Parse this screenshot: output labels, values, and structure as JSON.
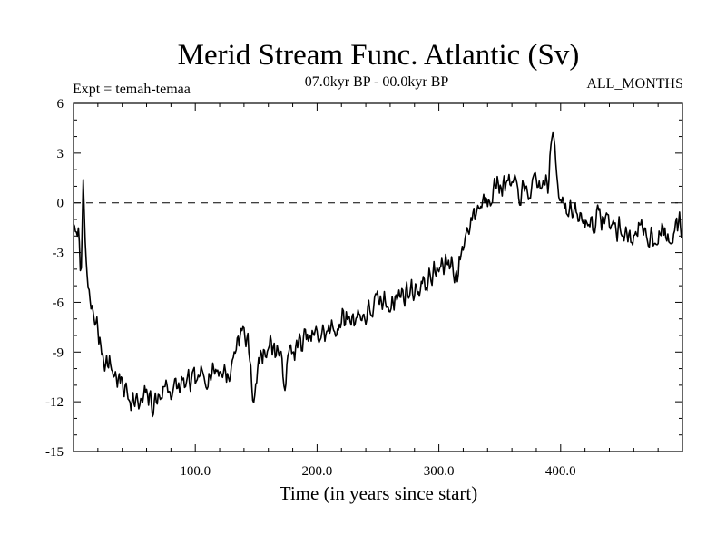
{
  "chart_data": {
    "type": "line",
    "title": "Merid Stream Func. Atlantic (Sv)",
    "subtitle_left": "Expt = temah-temaa",
    "subtitle_center": "07.0kyr BP - 00.0kyr BP",
    "subtitle_right": "ALL_MONTHS",
    "xlabel": "Time (in years since start)",
    "ylabel": "",
    "xlim": [
      0,
      500
    ],
    "ylim": [
      -15,
      6
    ],
    "xticks": [
      100,
      200,
      300,
      400
    ],
    "xtick_labels": [
      "100.0",
      "200.0",
      "300.0",
      "400.0"
    ],
    "yticks": [
      6,
      3,
      0,
      -3,
      -6,
      -9,
      -12,
      -15
    ],
    "ytick_labels": [
      "6",
      "3",
      "0",
      "-3",
      "-6",
      "-9",
      "-12",
      "-15"
    ],
    "reference_line": {
      "y": 0,
      "style": "dashed"
    },
    "anchors": [
      [
        0,
        -1.0
      ],
      [
        2,
        -2.5
      ],
      [
        4,
        -1.5
      ],
      [
        6,
        -4.0
      ],
      [
        8,
        0.5
      ],
      [
        10,
        -3.0
      ],
      [
        12,
        -5.5
      ],
      [
        15,
        -6.5
      ],
      [
        18,
        -7.0
      ],
      [
        22,
        -8.5
      ],
      [
        26,
        -9.5
      ],
      [
        30,
        -9.8
      ],
      [
        35,
        -10.5
      ],
      [
        40,
        -11.0
      ],
      [
        45,
        -11.5
      ],
      [
        50,
        -12.0
      ],
      [
        55,
        -12.3
      ],
      [
        60,
        -11.5
      ],
      [
        65,
        -12.2
      ],
      [
        70,
        -11.8
      ],
      [
        75,
        -11.0
      ],
      [
        80,
        -11.3
      ],
      [
        90,
        -11.0
      ],
      [
        100,
        -10.8
      ],
      [
        110,
        -10.3
      ],
      [
        120,
        -10.0
      ],
      [
        128,
        -10.5
      ],
      [
        135,
        -8.0
      ],
      [
        140,
        -7.8
      ],
      [
        145,
        -9.0
      ],
      [
        148,
        -12.5
      ],
      [
        152,
        -9.5
      ],
      [
        160,
        -8.5
      ],
      [
        170,
        -9.0
      ],
      [
        172,
        -11.0
      ],
      [
        178,
        -9.0
      ],
      [
        190,
        -8.3
      ],
      [
        200,
        -8.0
      ],
      [
        210,
        -7.8
      ],
      [
        220,
        -7.2
      ],
      [
        230,
        -6.8
      ],
      [
        240,
        -6.8
      ],
      [
        250,
        -6.0
      ],
      [
        260,
        -6.0
      ],
      [
        270,
        -5.5
      ],
      [
        280,
        -5.2
      ],
      [
        290,
        -4.8
      ],
      [
        300,
        -4.0
      ],
      [
        310,
        -3.5
      ],
      [
        315,
        -4.5
      ],
      [
        320,
        -2.5
      ],
      [
        325,
        -1.2
      ],
      [
        330,
        -0.5
      ],
      [
        340,
        0.5
      ],
      [
        350,
        1.2
      ],
      [
        360,
        1.0
      ],
      [
        370,
        0.5
      ],
      [
        380,
        1.0
      ],
      [
        390,
        1.2
      ],
      [
        394,
        4.5
      ],
      [
        398,
        1.0
      ],
      [
        405,
        -0.3
      ],
      [
        415,
        -1.0
      ],
      [
        425,
        -1.2
      ],
      [
        435,
        -0.8
      ],
      [
        445,
        -1.5
      ],
      [
        455,
        -2.0
      ],
      [
        465,
        -1.8
      ],
      [
        475,
        -2.0
      ],
      [
        485,
        -1.8
      ],
      [
        490,
        -2.5
      ],
      [
        495,
        -1.3
      ],
      [
        500,
        -1.5
      ]
    ],
    "noise_amplitude": 0.95,
    "sample_step": 0.8,
    "seed": 7
  }
}
